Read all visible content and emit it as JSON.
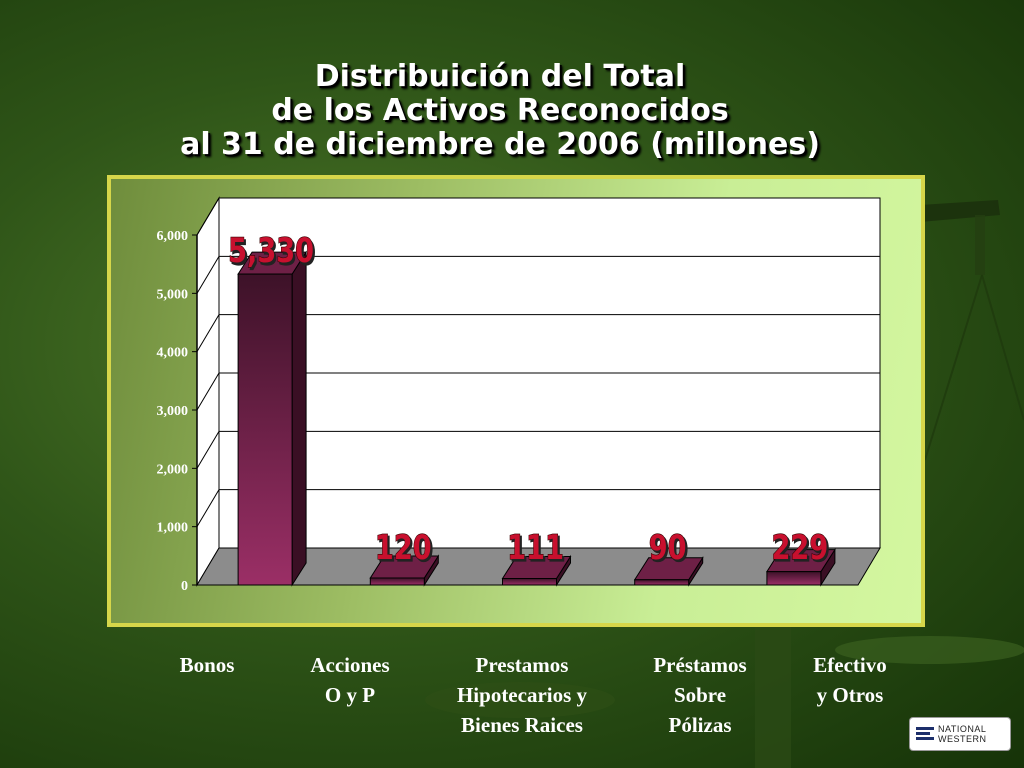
{
  "title_lines": [
    "Distribuición del Total",
    "de los Activos Reconocidos",
    "al 31 de diciembre de 2006 (millones)"
  ],
  "logo": {
    "line1": "NATIONAL",
    "line2": "WESTERN"
  },
  "colors": {
    "bar_front": "#9b2f66",
    "bar_side": "#3a0f24",
    "bar_top": "#6e2046",
    "floor": "#8c8c8c",
    "label_fill": "#c8102e"
  },
  "chart_data": {
    "type": "bar",
    "categories": [
      "Bonos",
      "Acciones\nO y P",
      "Prestamos\nHipotecarios y\nBienes Raices",
      "Préstamos\nSobre\nPólizas",
      "Efectivo\ny Otros"
    ],
    "values": [
      5330,
      120,
      111,
      90,
      229
    ],
    "value_labels": [
      "5,330",
      "120",
      "111",
      "90",
      "229"
    ],
    "yticks": [
      "0",
      "1,000",
      "2,000",
      "3,000",
      "4,000",
      "5,000",
      "6,000"
    ],
    "ylim": [
      0,
      6000
    ],
    "grid": true,
    "style": "3d"
  }
}
